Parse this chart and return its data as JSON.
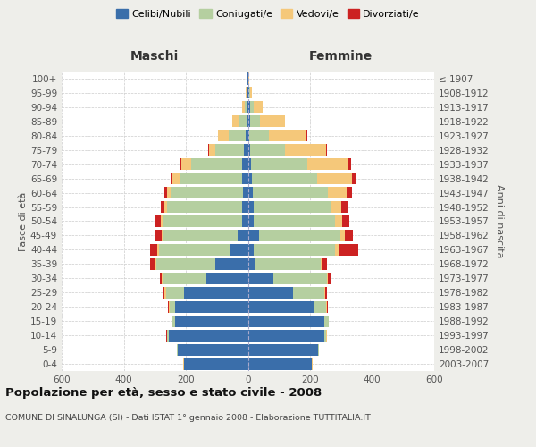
{
  "age_groups": [
    "100+",
    "95-99",
    "90-94",
    "85-89",
    "80-84",
    "75-79",
    "70-74",
    "65-69",
    "60-64",
    "55-59",
    "50-54",
    "45-49",
    "40-44",
    "35-39",
    "30-34",
    "25-29",
    "20-24",
    "15-19",
    "10-14",
    "5-9",
    "0-4"
  ],
  "birth_years": [
    "≤ 1907",
    "1908-1912",
    "1913-1917",
    "1918-1922",
    "1923-1927",
    "1928-1932",
    "1933-1937",
    "1938-1942",
    "1943-1947",
    "1948-1952",
    "1953-1957",
    "1958-1962",
    "1963-1967",
    "1968-1972",
    "1973-1977",
    "1978-1982",
    "1983-1987",
    "1988-1992",
    "1993-1997",
    "1998-2002",
    "2003-2007"
  ],
  "male_celibe": [
    2,
    2,
    4,
    5,
    8,
    12,
    20,
    18,
    16,
    18,
    20,
    32,
    55,
    105,
    135,
    205,
    235,
    235,
    255,
    225,
    205
  ],
  "male_coniugato": [
    0,
    2,
    6,
    22,
    55,
    92,
    162,
    202,
    232,
    242,
    252,
    242,
    232,
    190,
    140,
    58,
    18,
    8,
    5,
    3,
    2
  ],
  "male_vedovo": [
    0,
    2,
    8,
    22,
    32,
    22,
    32,
    22,
    12,
    8,
    8,
    5,
    5,
    5,
    3,
    5,
    2,
    1,
    1,
    1,
    1
  ],
  "male_divorziato": [
    0,
    0,
    0,
    0,
    0,
    2,
    4,
    8,
    10,
    14,
    20,
    22,
    22,
    14,
    6,
    3,
    2,
    1,
    1,
    1,
    1
  ],
  "female_celibe": [
    2,
    4,
    8,
    6,
    5,
    8,
    10,
    12,
    15,
    18,
    20,
    35,
    20,
    22,
    82,
    145,
    215,
    245,
    245,
    225,
    205
  ],
  "female_coniugato": [
    0,
    2,
    10,
    32,
    62,
    112,
    182,
    212,
    242,
    252,
    262,
    262,
    262,
    212,
    172,
    100,
    38,
    14,
    8,
    3,
    2
  ],
  "female_vedovo": [
    2,
    8,
    30,
    82,
    122,
    132,
    132,
    112,
    62,
    32,
    22,
    16,
    10,
    5,
    3,
    5,
    2,
    1,
    1,
    1,
    1
  ],
  "female_divorziato": [
    0,
    0,
    0,
    0,
    2,
    4,
    8,
    10,
    15,
    18,
    22,
    26,
    62,
    16,
    10,
    5,
    2,
    1,
    1,
    1,
    1
  ],
  "color_celibe": "#3a6eaa",
  "color_coniugato": "#b5cfa0",
  "color_vedovo": "#f5c87a",
  "color_divorziato": "#cc2222",
  "title": "Popolazione per età, sesso e stato civile - 2008",
  "subtitle": "COMUNE DI SINALUNGA (SI) - Dati ISTAT 1° gennaio 2008 - Elaborazione TUTTITALIA.IT",
  "xlabel_left": "Maschi",
  "xlabel_right": "Femmine",
  "ylabel_left": "Fasce di età",
  "ylabel_right": "Anni di nascita",
  "xlim": 600,
  "bg_color": "#eeeeea",
  "plot_bg_color": "#ffffff"
}
